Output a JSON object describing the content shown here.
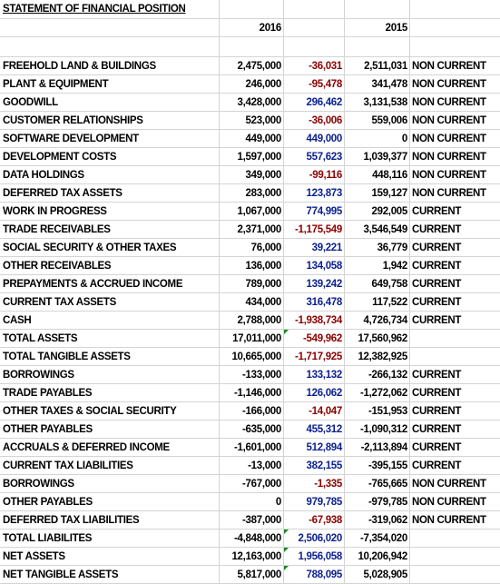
{
  "title": "STATEMENT OF FINANCIAL POSITION",
  "years": {
    "current": "2016",
    "prior": "2015"
  },
  "rows": [
    {
      "label": "FREEHOLD LAND & BUILDINGS",
      "v2016": "2,475,000",
      "change": "-36,031",
      "change_color": "red",
      "v2015": "2,511,031",
      "class": "NON CURRENT"
    },
    {
      "label": "PLANT & EQUIPMENT",
      "v2016": "246,000",
      "change": "-95,478",
      "change_color": "red",
      "v2015": "341,478",
      "class": "NON CURRENT"
    },
    {
      "label": "GOODWILL",
      "v2016": "3,428,000",
      "change": "296,462",
      "change_color": "blue",
      "v2015": "3,131,538",
      "class": "NON CURRENT"
    },
    {
      "label": "CUSTOMER RELATIONSHIPS",
      "v2016": "523,000",
      "change": "-36,006",
      "change_color": "red",
      "v2015": "559,006",
      "class": "NON CURRENT"
    },
    {
      "label": "SOFTWARE DEVELOPMENT",
      "v2016": "449,000",
      "change": "449,000",
      "change_color": "blue",
      "v2015": "0",
      "class": "NON CURRENT"
    },
    {
      "label": "DEVELOPMENT COSTS",
      "v2016": "1,597,000",
      "change": "557,623",
      "change_color": "blue",
      "v2015": "1,039,377",
      "class": "NON CURRENT"
    },
    {
      "label": "DATA HOLDINGS",
      "v2016": "349,000",
      "change": "-99,116",
      "change_color": "red",
      "v2015": "448,116",
      "class": "NON CURRENT"
    },
    {
      "label": "DEFERRED TAX ASSETS",
      "v2016": "283,000",
      "change": "123,873",
      "change_color": "blue",
      "v2015": "159,127",
      "class": "NON CURRENT"
    },
    {
      "label": "WORK IN PROGRESS",
      "v2016": "1,067,000",
      "change": "774,995",
      "change_color": "blue",
      "v2015": "292,005",
      "class": "CURRENT"
    },
    {
      "label": "TRADE RECEIVABLES",
      "v2016": "2,371,000",
      "change": "-1,175,549",
      "change_color": "red",
      "v2015": "3,546,549",
      "class": "CURRENT"
    },
    {
      "label": "SOCIAL SECURITY & OTHER TAXES",
      "v2016": "76,000",
      "change": "39,221",
      "change_color": "blue",
      "v2015": "36,779",
      "class": "CURRENT"
    },
    {
      "label": "OTHER RECEIVABLES",
      "v2016": "136,000",
      "change": "134,058",
      "change_color": "blue",
      "v2015": "1,942",
      "class": "CURRENT"
    },
    {
      "label": "PREPAYMENTS & ACCRUED INCOME",
      "v2016": "789,000",
      "change": "139,242",
      "change_color": "blue",
      "v2015": "649,758",
      "class": "CURRENT"
    },
    {
      "label": "CURRENT TAX ASSETS",
      "v2016": "434,000",
      "change": "316,478",
      "change_color": "blue",
      "v2015": "117,522",
      "class": "CURRENT"
    },
    {
      "label": "CASH",
      "v2016": "2,788,000",
      "change": "-1,938,734",
      "change_color": "red",
      "v2015": "4,726,734",
      "class": "CURRENT"
    },
    {
      "label": "TOTAL ASSETS",
      "v2016": "17,011,000",
      "change": "-549,962",
      "change_color": "red",
      "v2015": "17,560,962",
      "class": "",
      "tri": true
    },
    {
      "label": "TOTAL TANGIBLE ASSETS",
      "v2016": "10,665,000",
      "change": "-1,717,925",
      "change_color": "red",
      "v2015": "12,382,925",
      "class": ""
    },
    {
      "label": "BORROWINGS",
      "v2016": "-133,000",
      "change": "133,132",
      "change_color": "blue",
      "v2015": "-266,132",
      "class": "CURRENT"
    },
    {
      "label": "TRADE PAYABLES",
      "v2016": "-1,146,000",
      "change": "126,062",
      "change_color": "blue",
      "v2015": "-1,272,062",
      "class": "CURRENT"
    },
    {
      "label": "OTHER TAXES & SOCIAL SECURITY",
      "v2016": "-166,000",
      "change": "-14,047",
      "change_color": "red",
      "v2015": "-151,953",
      "class": "CURRENT"
    },
    {
      "label": "OTHER PAYABLES",
      "v2016": "-635,000",
      "change": "455,312",
      "change_color": "blue",
      "v2015": "-1,090,312",
      "class": "CURRENT"
    },
    {
      "label": "ACCRUALS & DEFERRED INCOME",
      "v2016": "-1,601,000",
      "change": "512,894",
      "change_color": "blue",
      "v2015": "-2,113,894",
      "class": "CURRENT"
    },
    {
      "label": "CURRENT TAX LIABILITIES",
      "v2016": "-13,000",
      "change": "382,155",
      "change_color": "blue",
      "v2015": "-395,155",
      "class": "CURRENT"
    },
    {
      "label": "BORROWINGS",
      "v2016": "-767,000",
      "change": "-1,335",
      "change_color": "red",
      "v2015": "-765,665",
      "class": "NON CURRENT"
    },
    {
      "label": "OTHER PAYABLES",
      "v2016": "0",
      "change": "979,785",
      "change_color": "blue",
      "v2015": "-979,785",
      "class": "NON CURRENT"
    },
    {
      "label": "DEFERRED TAX LIABILITIES",
      "v2016": "-387,000",
      "change": "-67,938",
      "change_color": "red",
      "v2015": "-319,062",
      "class": "NON CURRENT"
    },
    {
      "label": "TOTAL LIABILITES",
      "v2016": "-4,848,000",
      "change": "2,506,020",
      "change_color": "blue",
      "v2015": "-7,354,020",
      "class": "",
      "tri": true
    },
    {
      "label": "NET ASSETS",
      "v2016": "12,163,000",
      "change": "1,956,058",
      "change_color": "blue",
      "v2015": "10,206,942",
      "class": "",
      "tri": true
    },
    {
      "label": "NET TANGIBLE ASSETS",
      "v2016": "5,817,000",
      "change": "788,095",
      "change_color": "blue",
      "v2015": "5,028,905",
      "class": "",
      "tri": true
    }
  ]
}
